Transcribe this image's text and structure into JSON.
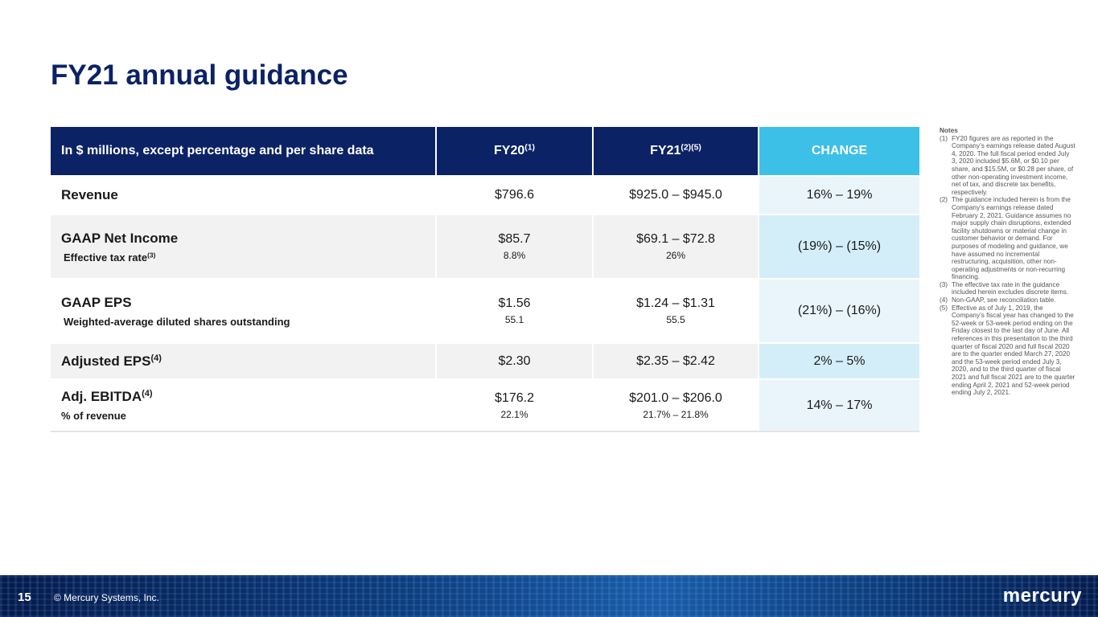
{
  "title": "FY21 annual guidance",
  "table": {
    "header": [
      {
        "text": "In $ millions, except percentage and per share data"
      },
      {
        "text": "FY20",
        "sup": "(1)"
      },
      {
        "text": "FY21",
        "sup": "(2)(5)"
      },
      {
        "text": "CHANGE"
      }
    ],
    "rows": [
      {
        "label": "Revenue",
        "fy20": "$796.6",
        "fy21": "$925.0 – $945.0",
        "change": "16% – 19%"
      },
      {
        "label": "GAAP Net Income",
        "sublabel": "Effective tax rate",
        "sublabel_sup": "(3)",
        "fy20": "$85.7",
        "fy20_sub": "8.8%",
        "fy21": "$69.1 – $72.8",
        "fy21_sub": "26%",
        "change": "(19%) – (15%)"
      },
      {
        "label": "GAAP EPS",
        "sublabel": "Weighted-average diluted shares outstanding",
        "fy20": "$1.56",
        "fy20_sub": "55.1",
        "fy21": "$1.24 – $1.31",
        "fy21_sub": "55.5",
        "change": "(21%) – (16%)"
      },
      {
        "label": "Adjusted EPS",
        "label_sup": "(4)",
        "fy20": "$2.30",
        "fy21": "$2.35 – $2.42",
        "change": "2% – 5%"
      },
      {
        "label": "Adj. EBITDA",
        "label_sup": "(4)",
        "sublabel": "% of revenue",
        "fy20": "$176.2",
        "fy20_sub": "22.1%",
        "fy21": "$201.0 – $206.0",
        "fy21_sub": "21.7% – 21.8%",
        "change": "14% – 17%"
      }
    ]
  },
  "notes": {
    "title": "Notes",
    "items": [
      {
        "num": "(1)",
        "text": "FY20 figures are as reported in the Company’s earnings release dated August 4, 2020. The full fiscal period ended July 3, 2020 included $5.6M, or $0.10 per share, and $15.5M, or $0.28 per share, of other non-operating investment income, net of tax, and discrete tax benefits, respectively."
      },
      {
        "num": "(2)",
        "text": "The guidance included herein is from the Company’s earnings release dated February 2, 2021. Guidance assumes no major supply chain disruptions, extended facility shutdowns or material change in customer behavior or demand. For purposes of modeling and guidance, we have assumed no incremental restructuring, acquisition, other non-operating adjustments or non-recurring financing."
      },
      {
        "num": "(3)",
        "text": "The effective tax rate in the guidance included herein excludes discrete items."
      },
      {
        "num": "(4)",
        "text": "Non-GAAP, see reconciliation table."
      },
      {
        "num": "(5)",
        "text": "Effective as of July 1, 2019, the Company’s fiscal year has changed to the 52-week or 53-week period ending on the Friday closest to the last day of June. All references in this presentation to the third quarter of fiscal 2020 and full fiscal 2020 are to the quarter ended March 27, 2020 and the 53-week period ended July 3, 2020, and to the third quarter of fiscal 2021 and full fiscal 2021 are to the quarter ending April 2, 2021 and 52-week period ending July 2, 2021."
      }
    ]
  },
  "footer": {
    "page": "15",
    "copyright": "© Mercury Systems, Inc.",
    "logo": "mercury"
  }
}
